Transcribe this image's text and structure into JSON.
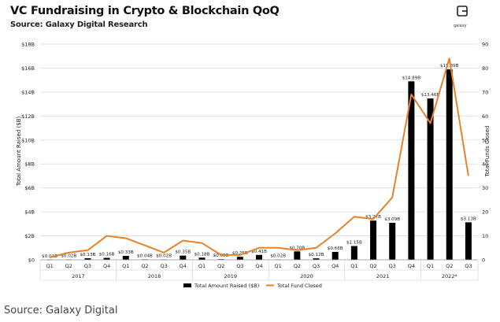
{
  "header": {
    "title": "VC Fundraising in Crypto & Blockchain QoQ",
    "subtitle": "Source: Galaxy Digital Research",
    "logo_text": "galaxy"
  },
  "footer": {
    "source": "Source: Galaxy Digital"
  },
  "chart_data": {
    "type": "bar",
    "categories": [
      "Q1",
      "Q2",
      "Q3",
      "Q4",
      "Q1",
      "Q2",
      "Q3",
      "Q4",
      "Q1",
      "Q2",
      "Q3",
      "Q4",
      "Q1",
      "Q2",
      "Q3",
      "Q4",
      "Q1",
      "Q2",
      "Q3",
      "Q4",
      "Q1",
      "Q2",
      "Q3"
    ],
    "groups": [
      {
        "label": "2017",
        "count": 4
      },
      {
        "label": "2018",
        "count": 4
      },
      {
        "label": "2019",
        "count": 4
      },
      {
        "label": "2020",
        "count": 4
      },
      {
        "label": "2021",
        "count": 4
      },
      {
        "label": "2022*",
        "count": 3
      }
    ],
    "series": [
      {
        "name": "Total Amount Raised ($B)",
        "type": "bar",
        "axis": "left",
        "values": [
          0.01,
          0.02,
          0.13,
          0.16,
          0.33,
          0.04,
          0.02,
          0.35,
          0.18,
          0.05,
          0.25,
          0.41,
          0.02,
          0.7,
          0.12,
          0.66,
          1.15,
          3.27,
          3.09,
          14.89,
          13.46,
          15.89,
          3.13
        ],
        "labels": [
          "$0.01B",
          "$0.02B",
          "$0.13B",
          "$0.16B",
          "$0.33B",
          "$0.04B",
          "$0.02B",
          "$0.35B",
          "$0.18B",
          "$0.05B",
          "$0.25B",
          "$0.41B",
          "$0.02B",
          "$0.70B",
          "$0.12B",
          "$0.66B",
          "$1.15B",
          "$3.27B",
          "$3.09B",
          "$14.89B",
          "$13.46B",
          "$15.89B",
          "$3.13B"
        ],
        "color": "#000000"
      },
      {
        "name": "Total Fund Closed",
        "type": "line",
        "axis": "right",
        "values": [
          1,
          3,
          4,
          10,
          9,
          6,
          3,
          8,
          7,
          2,
          2,
          5,
          5,
          4,
          5,
          11,
          18,
          17,
          26,
          69,
          57,
          84,
          35
        ],
        "color": "#E8822A"
      }
    ],
    "ylabel": "Total Amount Raised ($B)",
    "y2label": "Total Funds Closed",
    "ylim": [
      0,
      18
    ],
    "yticks": [
      "$0",
      "$2B",
      "$4B",
      "$6B",
      "$8B",
      "$10B",
      "$12B",
      "$14B",
      "$16B",
      "$18B"
    ],
    "y2lim": [
      0,
      90
    ],
    "y2ticks": [
      "0",
      "10",
      "20",
      "30",
      "40",
      "50",
      "60",
      "70",
      "80",
      "90"
    ],
    "grid": true,
    "legend": "bottom-center"
  }
}
